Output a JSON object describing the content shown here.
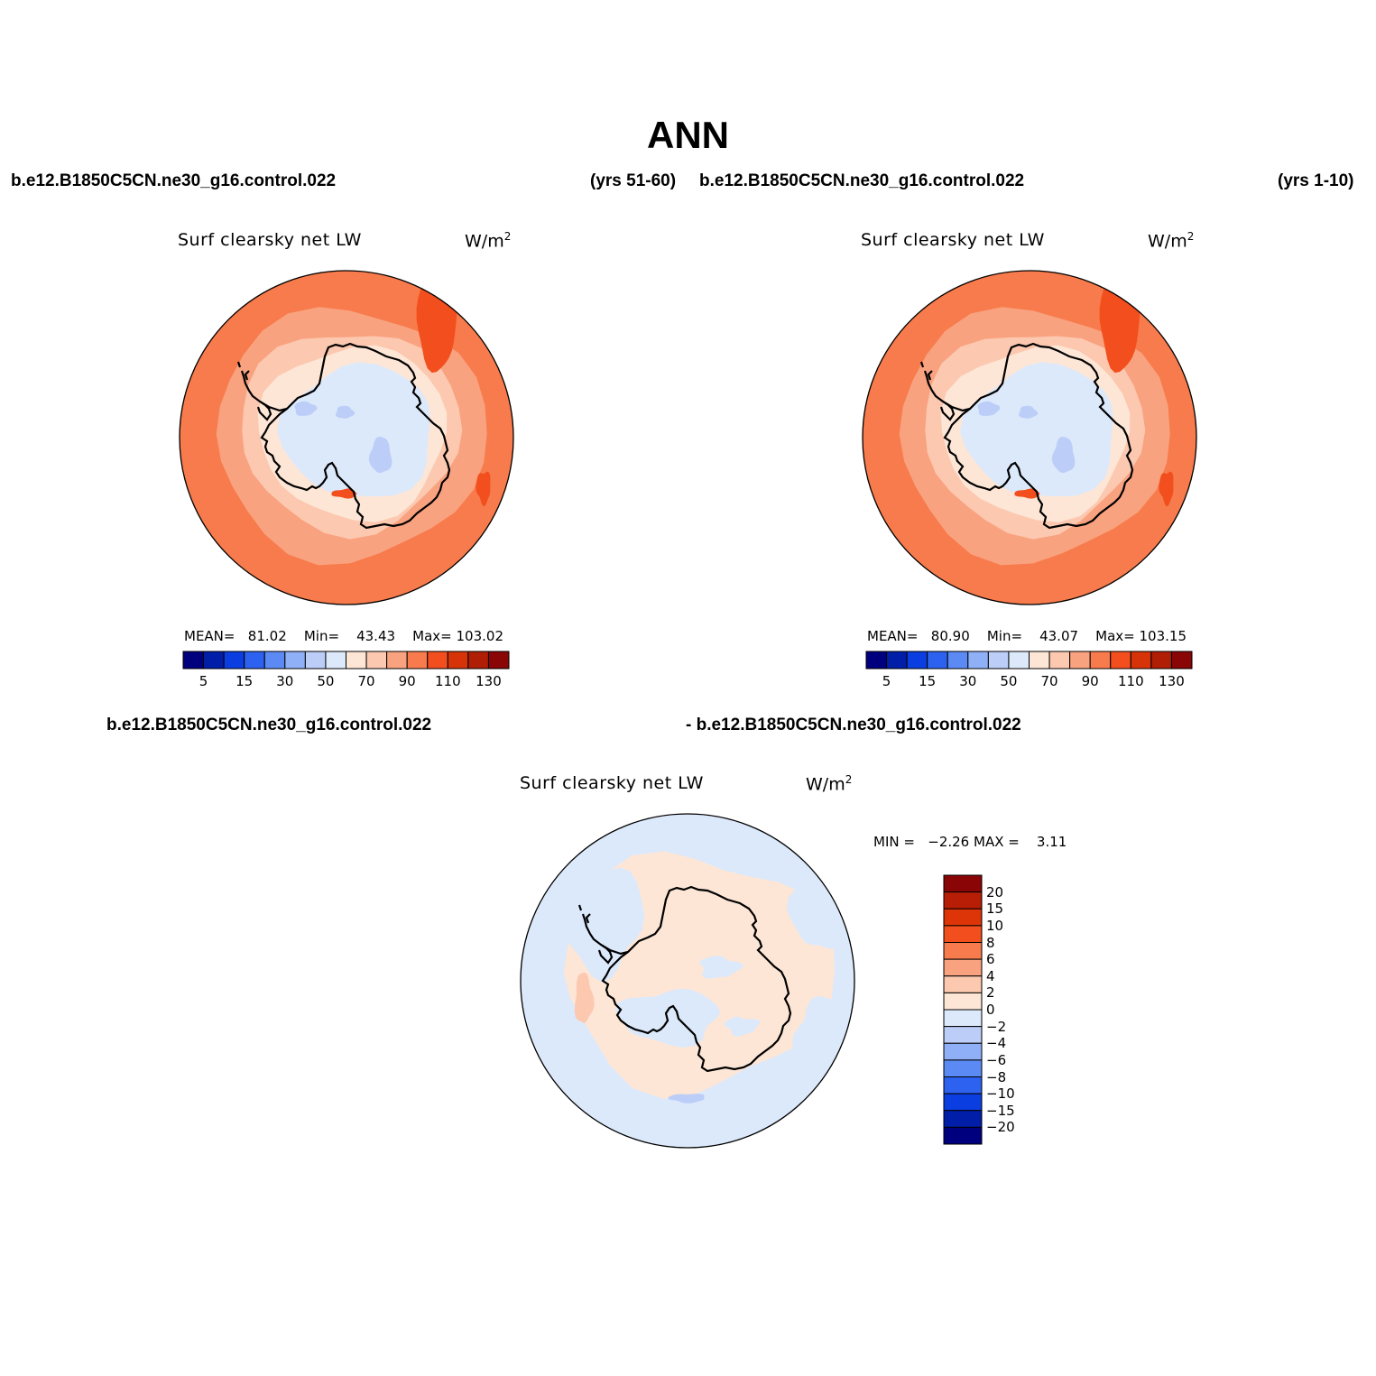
{
  "title": "ANN",
  "panels": [
    {
      "case_name": "b.e12.B1850C5CN.ne30_g16.control.022",
      "years": "(yrs 51-60)",
      "variable": "Surf clearsky net LW",
      "units": "W/m",
      "units_exp": "2",
      "stats": {
        "mean_label": "MEAN=",
        "mean": "81.02",
        "min_label": "Min=",
        "min": "43.43",
        "max_label": "Max=",
        "max": "103.02"
      }
    },
    {
      "case_name": "b.e12.B1850C5CN.ne30_g16.control.022",
      "years": "(yrs 1-10)",
      "variable": "Surf clearsky net LW",
      "units": "W/m",
      "units_exp": "2",
      "stats": {
        "mean_label": "MEAN=",
        "mean": "80.90",
        "min_label": "Min=",
        "min": "43.07",
        "max_label": "Max=",
        "max": "103.15"
      }
    }
  ],
  "diff_panel": {
    "case_left": "b.e12.B1850C5CN.ne30_g16.control.022",
    "case_right": "- b.e12.B1850C5CN.ne30_g16.control.022",
    "variable": "Surf clearsky net LW",
    "units": "W/m",
    "units_exp": "2",
    "stats": {
      "min_label": "MIN =",
      "min": "−2.26",
      "max_label": "MAX =",
      "max": "3.11"
    }
  },
  "colorbar_abs": {
    "colors": [
      "#00007f",
      "#001ea8",
      "#0a3ee0",
      "#2d62f0",
      "#5c8af5",
      "#8fb0f7",
      "#bccdf7",
      "#dce9fb",
      "#fde6d6",
      "#fcc8b0",
      "#f9a27f",
      "#f77b4c",
      "#f24e1e",
      "#d63408",
      "#b01e06",
      "#8a0505"
    ],
    "tick_labels": [
      "5",
      "15",
      "30",
      "50",
      "70",
      "90",
      "110",
      "130"
    ]
  },
  "colorbar_diff": {
    "colors": [
      "#8a0505",
      "#b81e06",
      "#dd3508",
      "#f24e1e",
      "#f77b4c",
      "#f9a27f",
      "#fcc8b0",
      "#fde6d6",
      "#dce9fb",
      "#bccdf7",
      "#8fb0f7",
      "#5c8af5",
      "#2d62f0",
      "#0a3ee0",
      "#001ea8",
      "#00007f"
    ],
    "tick_labels": [
      "20",
      "15",
      "10",
      "8",
      "6",
      "4",
      "2",
      "0",
      "−2",
      "−4",
      "−6",
      "−8",
      "−10",
      "−15",
      "−20"
    ]
  },
  "map_colors": {
    "outer": "#f77b4c",
    "ring2": "#f9a27f",
    "ring3": "#fcc8b0",
    "ring4": "#fde6d6",
    "interior": "#dce9fb",
    "low": "#bccdf7",
    "high": "#f24e1e",
    "diff_pos": "#fde6d6",
    "diff_neg": "#dce9fb",
    "diff_pos2": "#fcc8b0",
    "diff_neg2": "#bccdf7"
  }
}
